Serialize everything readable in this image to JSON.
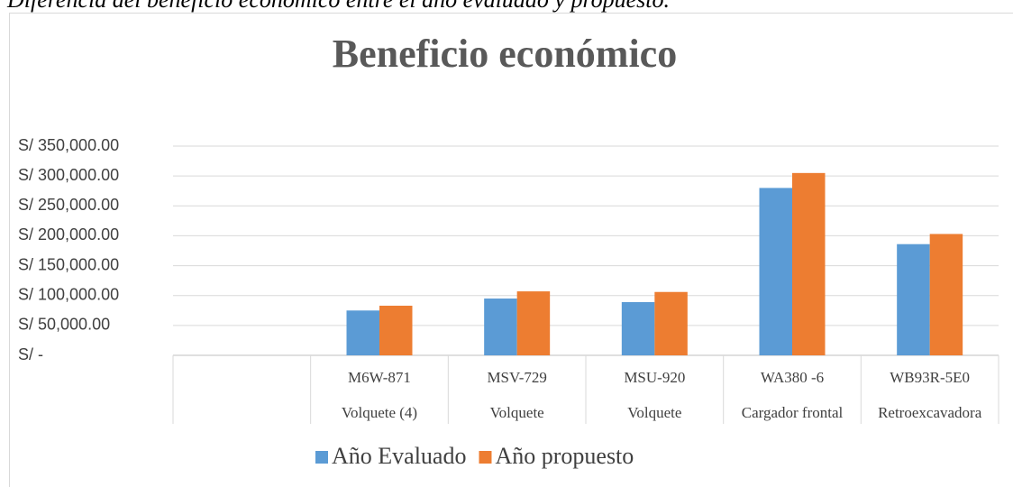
{
  "chart_data": {
    "type": "bar",
    "caption": "Diferencia del beneficio económico entre el año evaluado y propuesto.",
    "title": "Beneficio económico",
    "categories": [
      null,
      "M6W-871",
      "MSV-729",
      "MSU-920",
      "WA380 -6",
      "WB93R-5E0"
    ],
    "category_groups": [
      null,
      "Volquete (4)",
      "Volquete",
      "Volquete",
      "Cargador frontal",
      "Retroexcavadora"
    ],
    "series": [
      {
        "name": "Año Evaluado",
        "color": "#5b9bd5",
        "values": [
          null,
          75000,
          95000,
          89000,
          280000,
          186000
        ]
      },
      {
        "name": "Año propuesto",
        "color": "#ed7d31",
        "values": [
          null,
          83000,
          107000,
          106000,
          305000,
          203000
        ]
      }
    ],
    "ylim": [
      0,
      350000
    ],
    "yticks": [
      {
        "value": 0,
        "label": "S/ -"
      },
      {
        "value": 50000,
        "label": "S/ 50,000.00"
      },
      {
        "value": 100000,
        "label": "S/ 100,000.00"
      },
      {
        "value": 150000,
        "label": "S/ 150,000.00"
      },
      {
        "value": 200000,
        "label": "S/ 200,000.00"
      },
      {
        "value": 250000,
        "label": "S/ 250,000.00"
      },
      {
        "value": 300000,
        "label": "S/ 300,000.00"
      },
      {
        "value": 350000,
        "label": "S/ 350,000.00"
      }
    ],
    "grid": true,
    "legend": "bottom"
  }
}
